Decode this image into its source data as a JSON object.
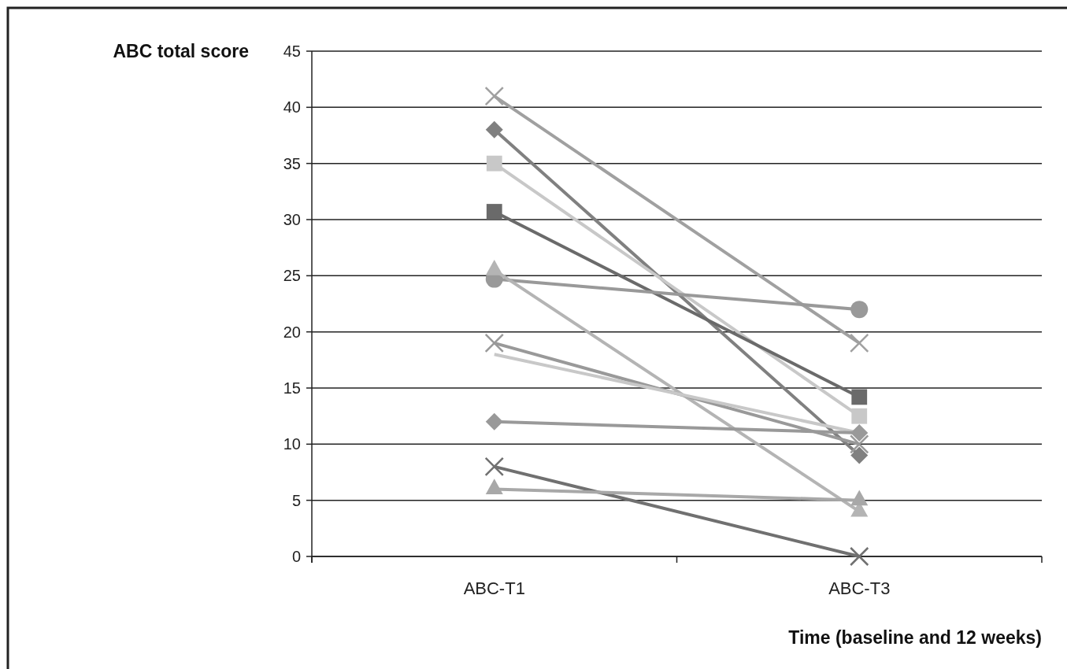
{
  "chart_data": {
    "type": "line",
    "xlabel": "Time (baseline and 12 weeks)",
    "ylabel": "ABC total score",
    "categories": [
      "ABC-T1",
      "ABC-T3"
    ],
    "ylim": [
      0,
      45
    ],
    "yticks": [
      0,
      5,
      10,
      15,
      20,
      25,
      30,
      35,
      40,
      45
    ],
    "grid": "y",
    "line_style": "solid",
    "series": [
      {
        "color": "#a0a0a0",
        "marker": "cross",
        "values": [
          41,
          19
        ]
      },
      {
        "color": "#808080",
        "marker": "diamond",
        "values": [
          38,
          9
        ]
      },
      {
        "color": "#c8c8c8",
        "marker": "square",
        "values": [
          35,
          12.5
        ]
      },
      {
        "color": "#6a6a6a",
        "marker": "square",
        "values": [
          30.7,
          14.2
        ]
      },
      {
        "color": "#999999",
        "marker": "circle",
        "values": [
          24.7,
          22
        ]
      },
      {
        "color": "#b4b4b4",
        "marker": "triangle",
        "values": [
          25.5,
          4
        ]
      },
      {
        "color": "#999999",
        "marker": "cross",
        "values": [
          19,
          10
        ]
      },
      {
        "color": "#c8c8c8",
        "marker": "none",
        "values": [
          18,
          11
        ]
      },
      {
        "color": "#999999",
        "marker": "diamond",
        "values": [
          12,
          11
        ]
      },
      {
        "color": "#707070",
        "marker": "cross",
        "values": [
          8,
          0
        ]
      },
      {
        "color": "#a8a8a8",
        "marker": "triangle",
        "values": [
          6,
          5
        ]
      }
    ]
  }
}
